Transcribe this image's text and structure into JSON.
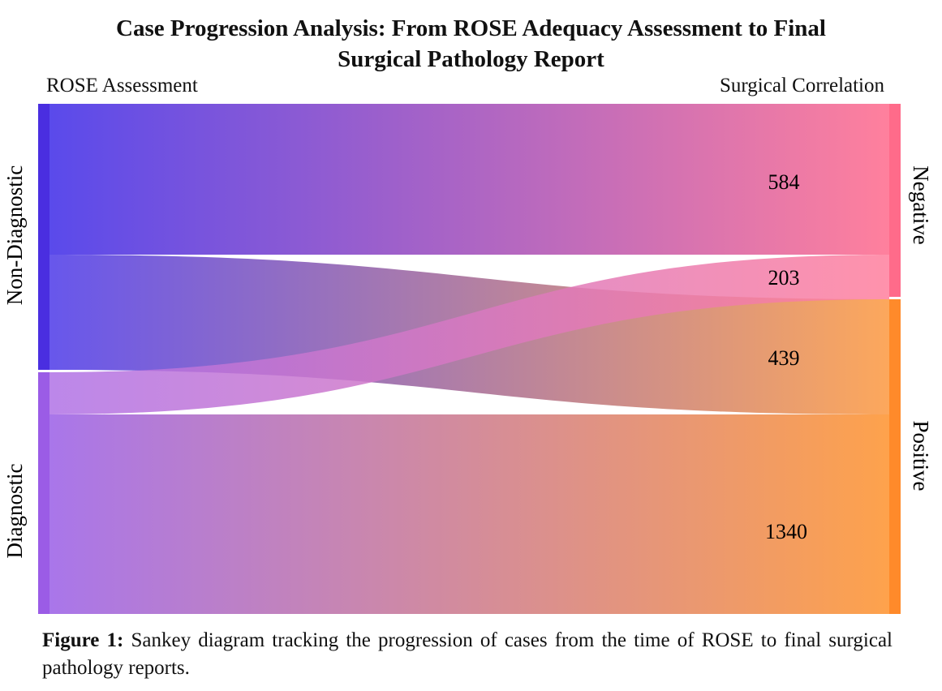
{
  "title_line1": "Case Progression Analysis: From ROSE Adequacy Assessment to Final",
  "title_line2": "Surgical Pathology Report",
  "left_column_header": "ROSE Assessment",
  "right_column_header": "Surgical Correlation",
  "nodes": {
    "non_diagnostic": {
      "label": "Non-Diagnostic",
      "color": "#4a2ee0"
    },
    "diagnostic": {
      "label": "Diagnostic",
      "color": "#9b5ce6"
    },
    "negative": {
      "label": "Negative",
      "color": "#ff6b8a"
    },
    "positive": {
      "label": "Positive",
      "color": "#ff8a2a"
    }
  },
  "flows": [
    {
      "from": "Non-Diagnostic",
      "to": "Negative",
      "value": "584"
    },
    {
      "from": "Diagnostic",
      "to": "Negative",
      "value": "203"
    },
    {
      "from": "Non-Diagnostic",
      "to": "Positive",
      "value": "439"
    },
    {
      "from": "Diagnostic",
      "to": "Positive",
      "value": "1340"
    }
  ],
  "caption_label": "Figure 1:",
  "caption_text": " Sankey diagram tracking the progression of cases from the time of ROSE to final surgical pathology reports."
}
